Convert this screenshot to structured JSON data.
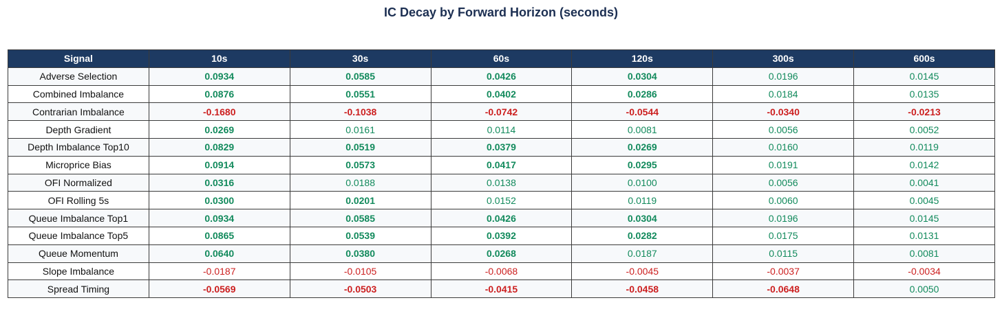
{
  "title": "IC Decay by Forward Horizon (seconds)",
  "colors": {
    "header_bg": "#1d3a62",
    "positive": "#128a5c",
    "negative": "#cc1f1f",
    "title": "#1c2f52"
  },
  "chart_data": {
    "type": "table",
    "title": "IC Decay by Forward Horizon (seconds)",
    "columns": [
      "Signal",
      "10s",
      "30s",
      "60s",
      "120s",
      "300s",
      "600s"
    ],
    "rows": [
      {
        "signal": "Adverse Selection",
        "values": [
          "0.0934",
          "0.0585",
          "0.0426",
          "0.0304",
          "0.0196",
          "0.0145"
        ],
        "bold": [
          true,
          true,
          true,
          true,
          false,
          false
        ]
      },
      {
        "signal": "Combined Imbalance",
        "values": [
          "0.0876",
          "0.0551",
          "0.0402",
          "0.0286",
          "0.0184",
          "0.0135"
        ],
        "bold": [
          true,
          true,
          true,
          true,
          false,
          false
        ]
      },
      {
        "signal": "Contrarian Imbalance",
        "values": [
          "-0.1680",
          "-0.1038",
          "-0.0742",
          "-0.0544",
          "-0.0340",
          "-0.0213"
        ],
        "bold": [
          true,
          true,
          true,
          true,
          true,
          true
        ]
      },
      {
        "signal": "Depth Gradient",
        "values": [
          "0.0269",
          "0.0161",
          "0.0114",
          "0.0081",
          "0.0056",
          "0.0052"
        ],
        "bold": [
          true,
          false,
          false,
          false,
          false,
          false
        ]
      },
      {
        "signal": "Depth Imbalance Top10",
        "values": [
          "0.0829",
          "0.0519",
          "0.0379",
          "0.0269",
          "0.0160",
          "0.0119"
        ],
        "bold": [
          true,
          true,
          true,
          true,
          false,
          false
        ]
      },
      {
        "signal": "Microprice Bias",
        "values": [
          "0.0914",
          "0.0573",
          "0.0417",
          "0.0295",
          "0.0191",
          "0.0142"
        ],
        "bold": [
          true,
          true,
          true,
          true,
          false,
          false
        ]
      },
      {
        "signal": "OFI Normalized",
        "values": [
          "0.0316",
          "0.0188",
          "0.0138",
          "0.0100",
          "0.0056",
          "0.0041"
        ],
        "bold": [
          true,
          false,
          false,
          false,
          false,
          false
        ]
      },
      {
        "signal": "OFI Rolling 5s",
        "values": [
          "0.0300",
          "0.0201",
          "0.0152",
          "0.0119",
          "0.0060",
          "0.0045"
        ],
        "bold": [
          true,
          true,
          false,
          false,
          false,
          false
        ]
      },
      {
        "signal": "Queue Imbalance Top1",
        "values": [
          "0.0934",
          "0.0585",
          "0.0426",
          "0.0304",
          "0.0196",
          "0.0145"
        ],
        "bold": [
          true,
          true,
          true,
          true,
          false,
          false
        ]
      },
      {
        "signal": "Queue Imbalance Top5",
        "values": [
          "0.0865",
          "0.0539",
          "0.0392",
          "0.0282",
          "0.0175",
          "0.0131"
        ],
        "bold": [
          true,
          true,
          true,
          true,
          false,
          false
        ]
      },
      {
        "signal": "Queue Momentum",
        "values": [
          "0.0640",
          "0.0380",
          "0.0268",
          "0.0187",
          "0.0115",
          "0.0081"
        ],
        "bold": [
          true,
          true,
          true,
          false,
          false,
          false
        ]
      },
      {
        "signal": "Slope Imbalance",
        "values": [
          "-0.0187",
          "-0.0105",
          "-0.0068",
          "-0.0045",
          "-0.0037",
          "-0.0034"
        ],
        "bold": [
          false,
          false,
          false,
          false,
          false,
          false
        ]
      },
      {
        "signal": "Spread Timing",
        "values": [
          "-0.0569",
          "-0.0503",
          "-0.0415",
          "-0.0458",
          "-0.0648",
          "0.0050"
        ],
        "bold": [
          true,
          true,
          true,
          true,
          true,
          false
        ]
      }
    ]
  }
}
